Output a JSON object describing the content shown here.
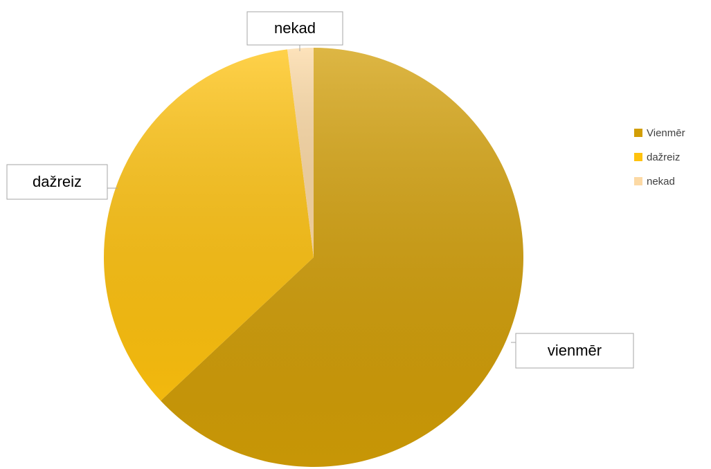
{
  "chart_data": {
    "type": "pie",
    "categories": [
      "Vienmēr",
      "dažreiz",
      "nekad"
    ],
    "values": [
      63,
      35,
      2
    ],
    "data_labels": [
      "vienmēr",
      "dažreiz",
      "nekad"
    ],
    "colors": [
      "#D29E06",
      "#FFC20E",
      "#FCD9A4"
    ],
    "legend": "right"
  }
}
